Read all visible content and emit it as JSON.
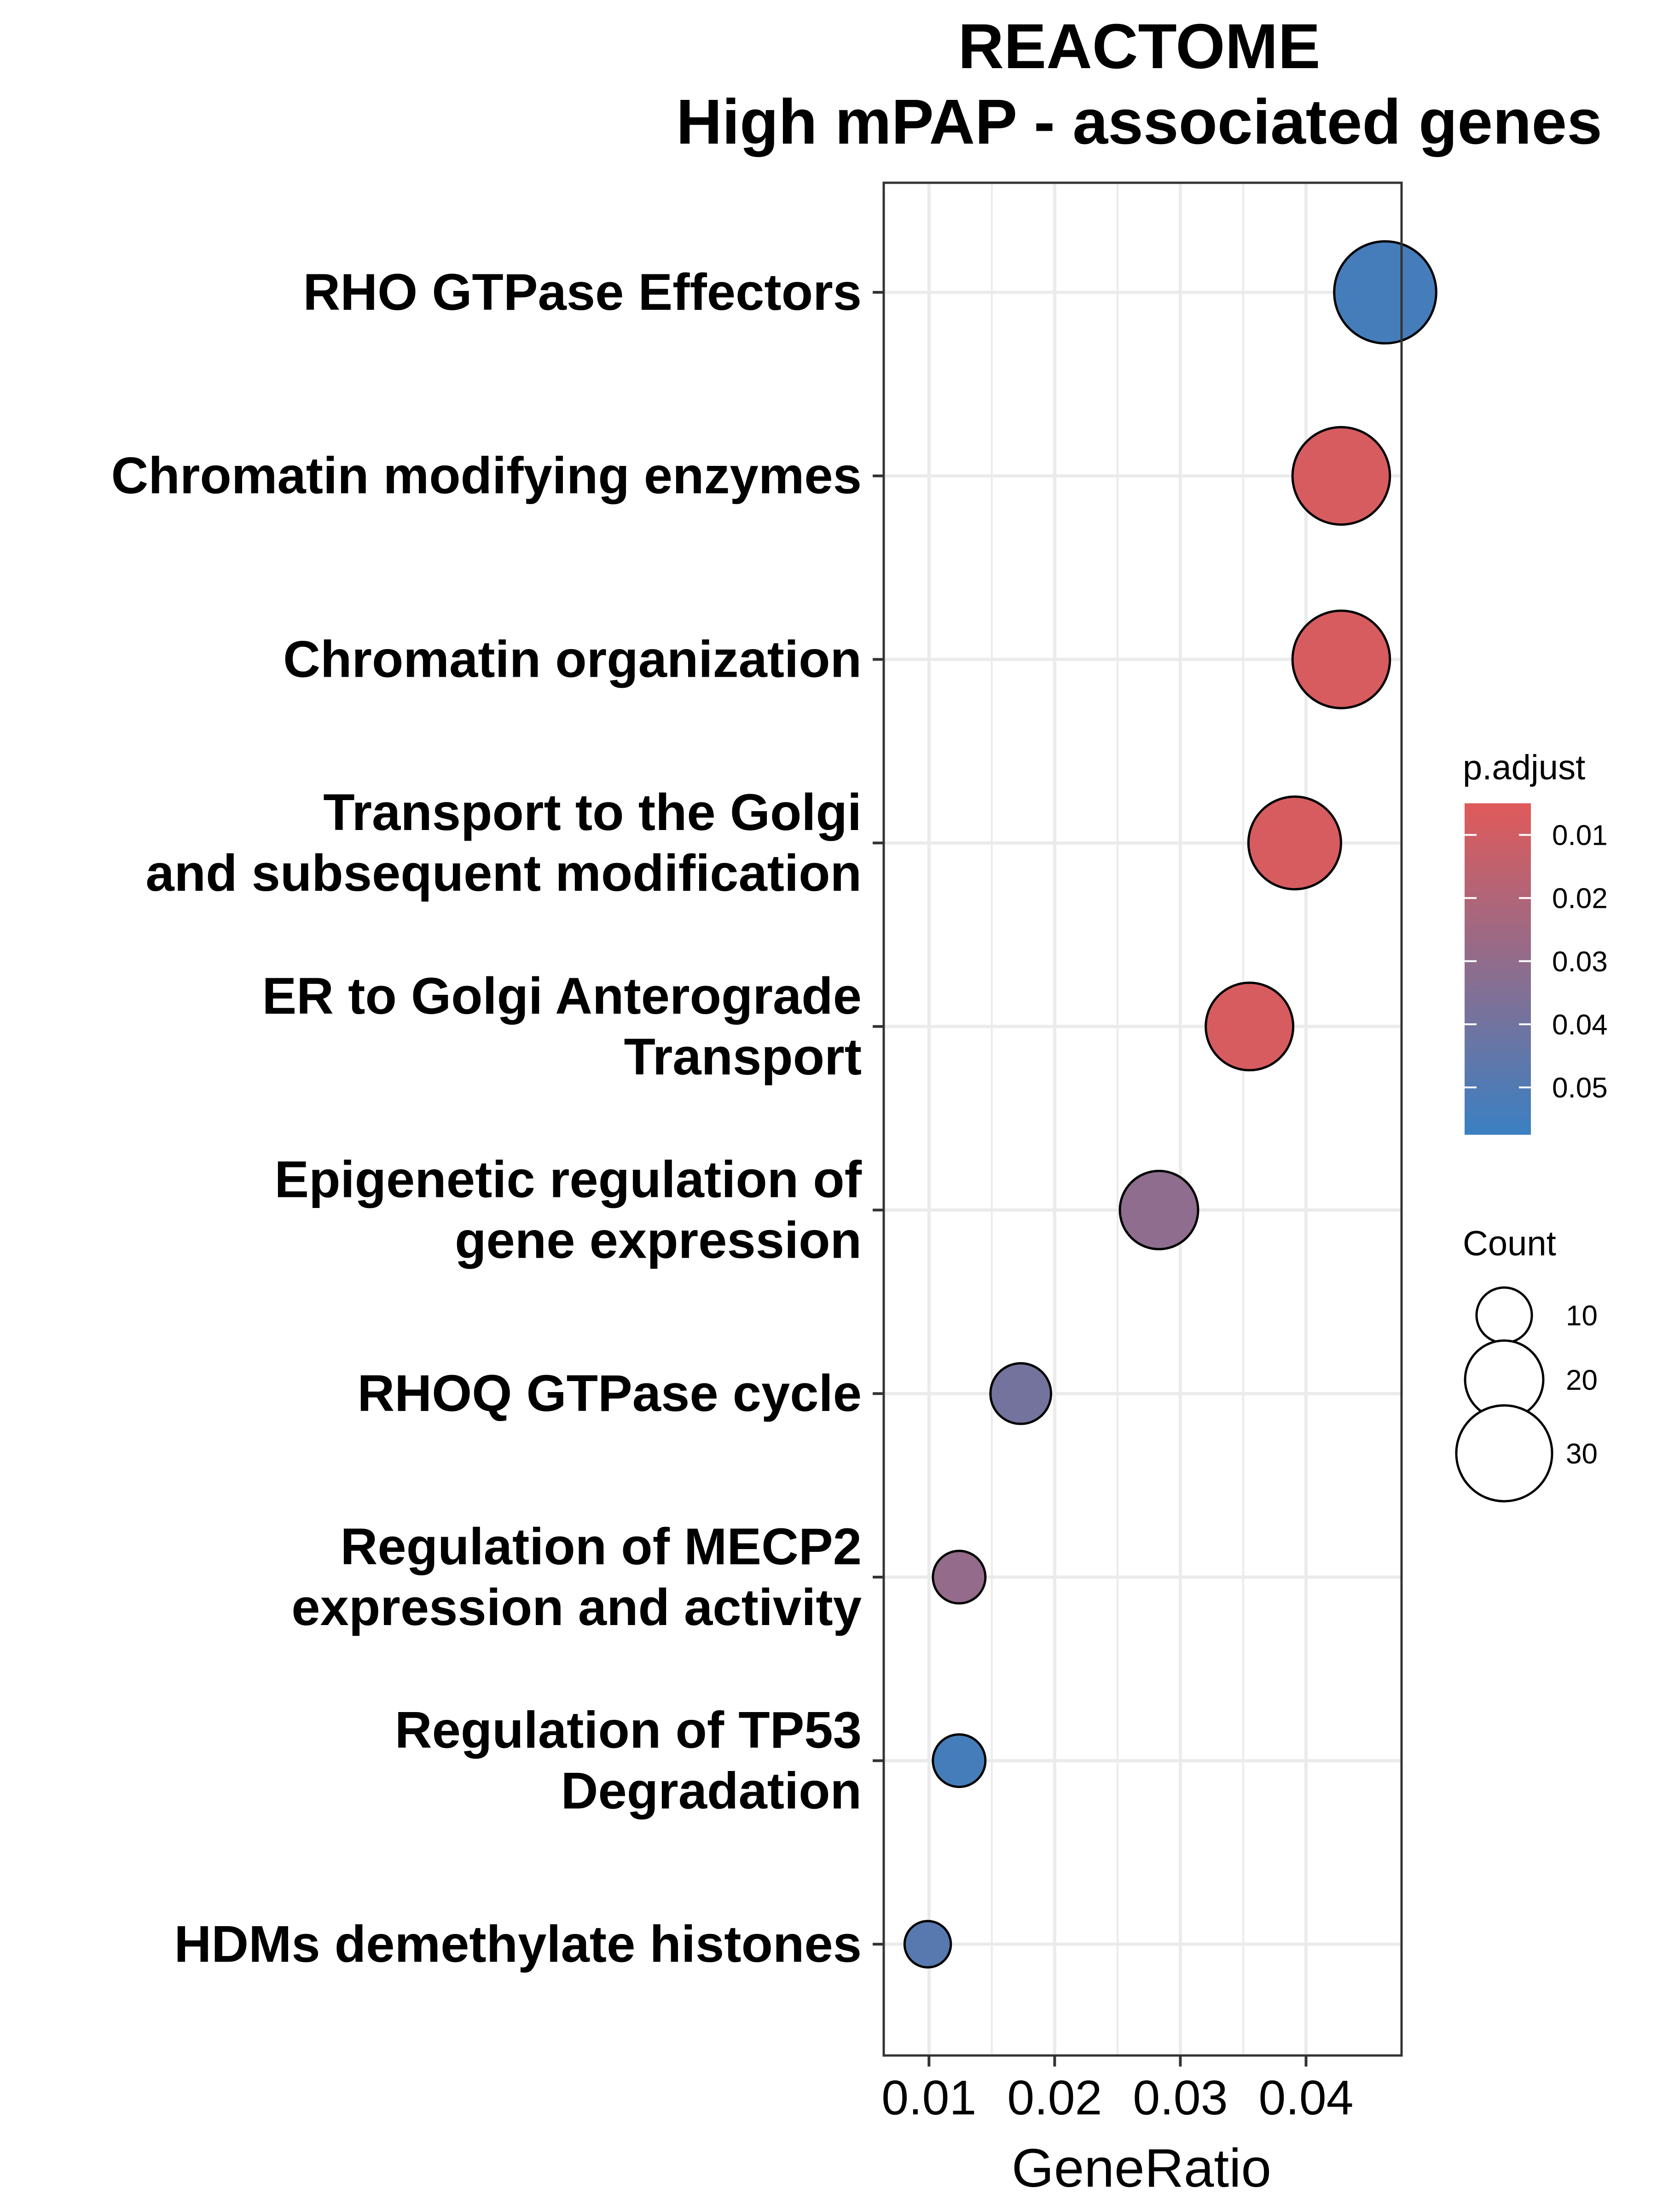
{
  "chart_data": {
    "type": "scatter",
    "title_lines": [
      "REACTOME",
      "High mPAP - associated genes"
    ],
    "xlabel": "GeneRatio",
    "ylabel": "",
    "xlim": [
      0.0064,
      0.0476
    ],
    "x_ticks": [
      {
        "value": 0.01,
        "label": "0.01"
      },
      {
        "value": 0.02,
        "label": "0.02"
      },
      {
        "value": 0.03,
        "label": "0.03"
      },
      {
        "value": 0.04,
        "label": "0.04"
      }
    ],
    "grid": true,
    "categories": [
      {
        "lines": [
          "RHO GTPase Effectors"
        ],
        "gene_ratio": 0.0463,
        "count": 34,
        "p_adjust": 0.054
      },
      {
        "lines": [
          "Chromatin modifying enzymes"
        ],
        "gene_ratio": 0.0428,
        "count": 31,
        "p_adjust": 0.008
      },
      {
        "lines": [
          "Chromatin organization"
        ],
        "gene_ratio": 0.0428,
        "count": 31,
        "p_adjust": 0.008
      },
      {
        "lines": [
          "Transport to the Golgi",
          "and subsequent modification"
        ],
        "gene_ratio": 0.0391,
        "count": 28,
        "p_adjust": 0.008
      },
      {
        "lines": [
          "ER to Golgi Anterograde",
          "Transport"
        ],
        "gene_ratio": 0.0355,
        "count": 25,
        "p_adjust": 0.008
      },
      {
        "lines": [
          "Epigenetic regulation of",
          "gene expression"
        ],
        "gene_ratio": 0.0283,
        "count": 20,
        "p_adjust": 0.031
      },
      {
        "lines": [
          "RHOQ GTPase cycle"
        ],
        "gene_ratio": 0.0173,
        "count": 12,
        "p_adjust": 0.039
      },
      {
        "lines": [
          "Regulation of MECP2",
          "expression and activity"
        ],
        "gene_ratio": 0.0124,
        "count": 9,
        "p_adjust": 0.029
      },
      {
        "lines": [
          "Regulation of TP53",
          "Degradation"
        ],
        "gene_ratio": 0.0124,
        "count": 9,
        "p_adjust": 0.054
      },
      {
        "lines": [
          "HDMs demethylate histones"
        ],
        "gene_ratio": 0.0099,
        "count": 7,
        "p_adjust": 0.048
      }
    ],
    "color_legend": {
      "title": "p.adjust",
      "low_value_color": "#E05A5A",
      "high_value_color": "#3A80C2",
      "range": [
        0.005,
        0.0575
      ],
      "ticks": [
        {
          "value": 0.01,
          "label": "0.01"
        },
        {
          "value": 0.02,
          "label": "0.02"
        },
        {
          "value": 0.03,
          "label": "0.03"
        },
        {
          "value": 0.04,
          "label": "0.04"
        },
        {
          "value": 0.05,
          "label": "0.05"
        }
      ]
    },
    "size_legend": {
      "title": "Count",
      "entries": [
        {
          "value": 10,
          "label": "10"
        },
        {
          "value": 20,
          "label": "20"
        },
        {
          "value": 30,
          "label": "30"
        }
      ]
    },
    "colors": {
      "gridline": "#EBEBEB",
      "panel_border": "#333333",
      "point_outline": "#000000"
    }
  }
}
